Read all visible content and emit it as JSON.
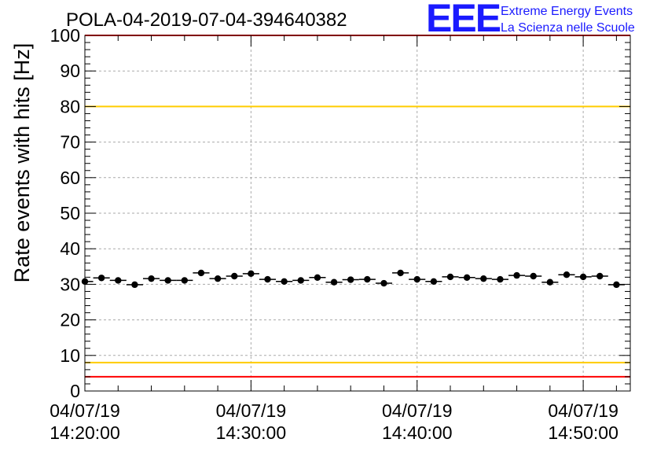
{
  "chart_data": {
    "type": "scatter",
    "title": "POLA-04-2019-07-04-394640382",
    "ylabel": "Rate events with hits [Hz]",
    "xlabel": "",
    "ylim": [
      0,
      100
    ],
    "yticks": [
      "0",
      "10",
      "20",
      "30",
      "40",
      "50",
      "60",
      "70",
      "80",
      "90",
      "100"
    ],
    "xlim": [
      "2019-07-04 14:20:00",
      "2019-07-04 14:52:50"
    ],
    "xticks": [
      {
        "time": "2019-07-04 14:20:00",
        "date": "04/07/19",
        "clock": "14:20:00"
      },
      {
        "time": "2019-07-04 14:30:00",
        "date": "04/07/19",
        "clock": "14:30:00"
      },
      {
        "time": "2019-07-04 14:40:00",
        "date": "04/07/19",
        "clock": "14:40:00"
      },
      {
        "time": "2019-07-04 14:50:00",
        "date": "04/07/19",
        "clock": "14:50:00"
      }
    ],
    "grid": true,
    "bin_minutes": 1,
    "series": [
      {
        "x": [
          "14:20:00",
          "14:21:00",
          "14:22:00",
          "14:23:00",
          "14:24:00",
          "14:25:00",
          "14:26:00",
          "14:27:00",
          "14:28:00",
          "14:29:00",
          "14:30:00",
          "14:31:00",
          "14:32:00",
          "14:33:00",
          "14:34:00",
          "14:35:00",
          "14:36:00",
          "14:37:00",
          "14:38:00",
          "14:39:00",
          "14:40:00",
          "14:41:00",
          "14:42:00",
          "14:43:00",
          "14:44:00",
          "14:45:00",
          "14:46:00",
          "14:47:00",
          "14:48:00",
          "14:49:00",
          "14:50:00",
          "14:51:00",
          "14:52:00"
        ],
        "values": [
          30.8,
          31.8,
          31.1,
          29.9,
          31.6,
          31.1,
          31.1,
          33.2,
          31.6,
          32.3,
          33.0,
          31.4,
          30.8,
          31.1,
          31.9,
          30.6,
          31.3,
          31.4,
          30.3,
          33.2,
          31.4,
          30.8,
          32.1,
          31.9,
          31.6,
          31.4,
          32.5,
          32.3,
          30.6,
          32.7,
          32.1,
          32.3,
          29.9
        ],
        "color": "#000000"
      }
    ],
    "reference_lines": [
      {
        "value": 100,
        "color": "#ff0000"
      },
      {
        "value": 80,
        "color": "#ffcc00"
      },
      {
        "value": 8,
        "color": "#ffcc00"
      },
      {
        "value": 4,
        "color": "#ff0000"
      }
    ]
  },
  "logo": {
    "letters": "EEE",
    "line1": "Extreme Energy Events",
    "line2": "La Scienza nelle Scuole",
    "color": "#1a1aff"
  }
}
